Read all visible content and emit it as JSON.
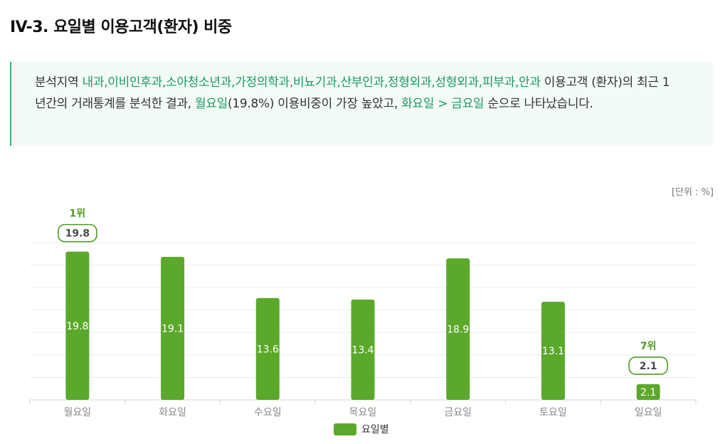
{
  "header": {
    "title": "IV-3. 요일별 이용고객(환자) 비중"
  },
  "summary": {
    "text_1": "분석지역 ",
    "departments": "내과,이비인후과,소아청소년과,가정의학과,비뇨기과,산부인과,정형외과,성형외과,피부과,안과",
    "text_2": " 이용고객 (환자)의 최근 1년간의 거래통계를 분석한 결과, ",
    "top_day": "월요일",
    "text_3": "(19.8%) 이용비중이 가장 높았고, ",
    "next_days": "화요일 > 금요일",
    "text_4": " 순으로 나타났습니다."
  },
  "unit_label": "[단위 : %]",
  "colors": {
    "bar": "#5ba92a",
    "accent": "#1a9a62",
    "callout": "#4f9a21"
  },
  "chart_data": {
    "type": "bar",
    "categories": [
      "월요일",
      "화요일",
      "수요일",
      "목요일",
      "금요일",
      "토요일",
      "일요일"
    ],
    "series": [
      {
        "name": "요일별",
        "values": [
          19.8,
          19.1,
          13.6,
          13.4,
          18.9,
          13.1,
          2.1
        ]
      }
    ],
    "value_labels": [
      "19.8",
      "19.1",
      "13.6",
      "13.4",
      "18.9",
      "13.1",
      "2.1"
    ],
    "ylim": [
      0,
      21
    ],
    "grid": true,
    "legend": "bottom",
    "annotations": [
      {
        "category": "월요일",
        "rank": "1위",
        "value": "19.8"
      },
      {
        "category": "일요일",
        "rank": "7위",
        "value": "2.1"
      }
    ]
  }
}
